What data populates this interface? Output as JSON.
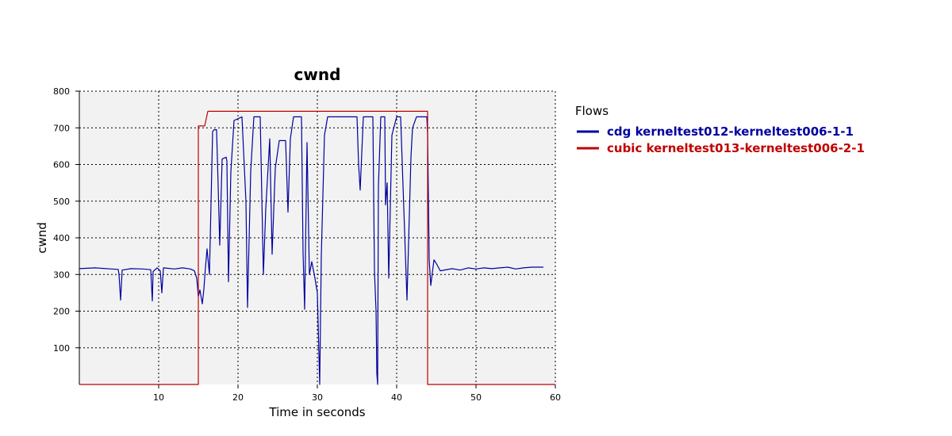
{
  "chart_data": {
    "type": "line",
    "title": "cwnd",
    "xlabel": "Time in seconds",
    "ylabel": "cwnd",
    "xlim": [
      0,
      60
    ],
    "ylim": [
      0,
      800
    ],
    "x_ticks": [
      10,
      20,
      30,
      40,
      50,
      60
    ],
    "y_ticks": [
      100,
      200,
      300,
      400,
      500,
      600,
      700,
      800
    ],
    "grid": true,
    "legend": {
      "title": "Flows",
      "placement": "right"
    },
    "series": [
      {
        "name": "cdg kerneltest012-kerneltest006-1-1",
        "color": "#0000a0",
        "points": [
          [
            0.0,
            316
          ],
          [
            2.0,
            318
          ],
          [
            4.0,
            315
          ],
          [
            4.9,
            314
          ],
          [
            5.0,
            300
          ],
          [
            5.2,
            230
          ],
          [
            5.4,
            312
          ],
          [
            6.5,
            316
          ],
          [
            8.0,
            315
          ],
          [
            9.0,
            313
          ],
          [
            9.2,
            228
          ],
          [
            9.3,
            308
          ],
          [
            9.8,
            318
          ],
          [
            10.2,
            310
          ],
          [
            10.4,
            250
          ],
          [
            10.6,
            318
          ],
          [
            12.0,
            315
          ],
          [
            13.0,
            318
          ],
          [
            14.0,
            315
          ],
          [
            14.5,
            310
          ],
          [
            14.8,
            290
          ],
          [
            15.0,
            240
          ],
          [
            15.2,
            258
          ],
          [
            15.5,
            220
          ],
          [
            15.7,
            260
          ],
          [
            15.9,
            320
          ],
          [
            16.1,
            370
          ],
          [
            16.4,
            300
          ],
          [
            16.8,
            690
          ],
          [
            17.0,
            695
          ],
          [
            17.3,
            695
          ],
          [
            17.5,
            540
          ],
          [
            17.7,
            380
          ],
          [
            18.0,
            615
          ],
          [
            18.5,
            620
          ],
          [
            18.6,
            610
          ],
          [
            18.8,
            280
          ],
          [
            19.1,
            580
          ],
          [
            19.5,
            720
          ],
          [
            20.5,
            730
          ],
          [
            21.0,
            500
          ],
          [
            21.2,
            210
          ],
          [
            21.6,
            580
          ],
          [
            22.0,
            730
          ],
          [
            22.8,
            730
          ],
          [
            23.2,
            300
          ],
          [
            23.5,
            480
          ],
          [
            24.0,
            670
          ],
          [
            24.3,
            355
          ],
          [
            24.7,
            590
          ],
          [
            25.2,
            665
          ],
          [
            26.0,
            665
          ],
          [
            26.3,
            470
          ],
          [
            26.6,
            670
          ],
          [
            27.0,
            730
          ],
          [
            28.0,
            730
          ],
          [
            28.2,
            360
          ],
          [
            28.4,
            205
          ],
          [
            28.7,
            660
          ],
          [
            29.0,
            300
          ],
          [
            29.3,
            335
          ],
          [
            29.7,
            290
          ],
          [
            30.0,
            250
          ],
          [
            30.3,
            0
          ],
          [
            30.5,
            350
          ],
          [
            30.9,
            680
          ],
          [
            31.3,
            730
          ],
          [
            33.0,
            730
          ],
          [
            34.0,
            730
          ],
          [
            35.0,
            730
          ],
          [
            35.2,
            600
          ],
          [
            35.4,
            530
          ],
          [
            35.8,
            730
          ],
          [
            37.0,
            730
          ],
          [
            37.2,
            310
          ],
          [
            37.4,
            200
          ],
          [
            37.5,
            30
          ],
          [
            37.6,
            0
          ],
          [
            37.7,
            540
          ],
          [
            38.0,
            730
          ],
          [
            38.5,
            730
          ],
          [
            38.6,
            490
          ],
          [
            38.8,
            550
          ],
          [
            39.0,
            290
          ],
          [
            39.4,
            680
          ],
          [
            40.0,
            730
          ],
          [
            40.5,
            730
          ],
          [
            40.9,
            480
          ],
          [
            41.3,
            230
          ],
          [
            41.8,
            620
          ],
          [
            42.0,
            700
          ],
          [
            42.5,
            730
          ],
          [
            43.8,
            730
          ],
          [
            43.9,
            680
          ],
          [
            44.0,
            515
          ],
          [
            44.1,
            340
          ],
          [
            44.3,
            270
          ],
          [
            44.7,
            340
          ],
          [
            45.0,
            330
          ],
          [
            45.5,
            310
          ],
          [
            47.0,
            316
          ],
          [
            48.0,
            312
          ],
          [
            49.0,
            318
          ],
          [
            50.0,
            315
          ],
          [
            51.0,
            318
          ],
          [
            52.0,
            316
          ],
          [
            53.0,
            318
          ],
          [
            54.0,
            320
          ],
          [
            55.0,
            315
          ],
          [
            56.0,
            318
          ],
          [
            57.0,
            320
          ],
          [
            58.5,
            320
          ]
        ]
      },
      {
        "name": "cubic kerneltest013-kerneltest006-2-1",
        "color": "#c00000",
        "points": [
          [
            0.0,
            0
          ],
          [
            15.0,
            0
          ],
          [
            15.0,
            705
          ],
          [
            15.8,
            705
          ],
          [
            16.2,
            745
          ],
          [
            43.9,
            745
          ],
          [
            43.9,
            0
          ],
          [
            60.0,
            0
          ]
        ]
      }
    ]
  }
}
